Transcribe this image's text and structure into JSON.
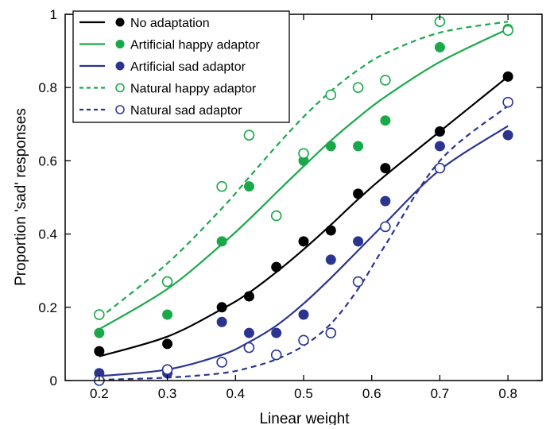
{
  "chart_data": {
    "type": "scatter",
    "title": "",
    "xlabel": "Linear weight",
    "ylabel": "Proportion 'sad' responses",
    "xlim": [
      0.15,
      0.85
    ],
    "ylim": [
      0,
      1
    ],
    "xticks": [
      "0.2",
      "0.3",
      "0.4",
      "0.5",
      "0.6",
      "0.7",
      "0.8"
    ],
    "yticks": [
      "0",
      "0.2",
      "0.4",
      "0.6",
      "0.8",
      "1"
    ],
    "grid": false,
    "legend_position": "top-left",
    "series": [
      {
        "name": "No adaptation",
        "color": "#000000",
        "marker": "filled-circle",
        "line": "solid",
        "x": [
          0.2,
          0.3,
          0.38,
          0.42,
          0.46,
          0.5,
          0.54,
          0.58,
          0.62,
          0.7,
          0.8
        ],
        "y": [
          0.08,
          0.1,
          0.2,
          0.23,
          0.31,
          0.38,
          0.41,
          0.51,
          0.58,
          0.68,
          0.83
        ],
        "fit_y": [
          0.066,
          0.12,
          0.195,
          0.24,
          0.296,
          0.358,
          0.425,
          0.495,
          0.56,
          0.68,
          0.83
        ]
      },
      {
        "name": "Artificial happy adaptor",
        "color": "#1aa94a",
        "marker": "filled-circle",
        "line": "solid",
        "x": [
          0.2,
          0.3,
          0.38,
          0.42,
          0.46,
          0.5,
          0.54,
          0.58,
          0.62,
          0.7,
          0.8
        ],
        "y": [
          0.13,
          0.18,
          0.38,
          0.53,
          0.45,
          0.6,
          0.64,
          0.64,
          0.71,
          0.91,
          0.96
        ],
        "y_note": "",
        "fit_y": [
          0.14,
          0.25,
          0.372,
          0.44,
          0.513,
          0.585,
          0.655,
          0.718,
          0.775,
          0.87,
          0.96
        ]
      },
      {
        "name": "Artificial sad adaptor",
        "color": "#2b3590",
        "marker": "filled-circle",
        "line": "solid",
        "x": [
          0.2,
          0.3,
          0.38,
          0.42,
          0.46,
          0.5,
          0.54,
          0.58,
          0.62,
          0.7,
          0.8
        ],
        "y": [
          0.02,
          0.02,
          0.16,
          0.13,
          0.13,
          0.18,
          0.33,
          0.38,
          0.49,
          0.64,
          0.67
        ],
        "fit_y": [
          0.012,
          0.03,
          0.07,
          0.105,
          0.15,
          0.21,
          0.28,
          0.355,
          0.43,
          0.575,
          0.695
        ]
      },
      {
        "name": "Natural happy adaptor",
        "color": "#1aa94a",
        "marker": "open-circle",
        "line": "dashed",
        "x": [
          0.2,
          0.3,
          0.38,
          0.42,
          0.46,
          0.5,
          0.54,
          0.58,
          0.62,
          0.7,
          0.8
        ],
        "y": [
          0.18,
          0.27,
          0.53,
          0.67,
          0.45,
          0.62,
          0.78,
          0.8,
          0.82,
          0.98,
          null
        ],
        "fit_y": [
          0.17,
          0.32,
          0.47,
          0.555,
          0.64,
          0.72,
          0.79,
          0.848,
          0.893,
          0.95,
          0.98
        ]
      },
      {
        "name": "Natural sad adaptor",
        "color": "#2b3590",
        "marker": "open-circle",
        "line": "dashed",
        "x": [
          0.2,
          0.3,
          0.38,
          0.42,
          0.46,
          0.5,
          0.54,
          0.58,
          0.62,
          0.7,
          0.8
        ],
        "y": [
          0.0,
          0.03,
          0.05,
          0.09,
          0.07,
          0.11,
          0.13,
          0.27,
          0.42,
          0.58,
          0.76
        ],
        "fit_y": [
          0.002,
          0.008,
          0.02,
          0.035,
          0.058,
          0.095,
          0.155,
          0.25,
          0.37,
          0.6,
          0.75
        ]
      }
    ]
  }
}
